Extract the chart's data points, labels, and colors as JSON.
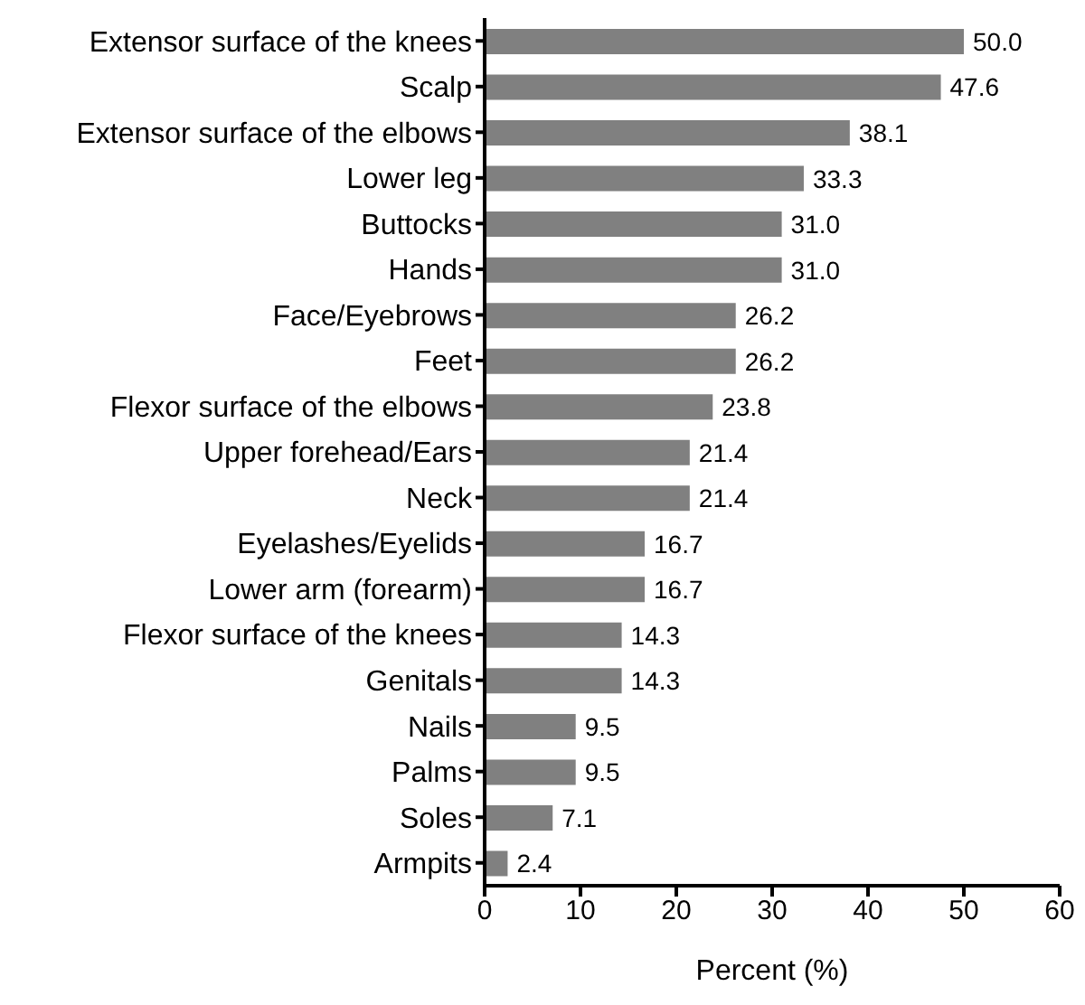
{
  "chart_data": {
    "type": "bar",
    "orientation": "horizontal",
    "xlabel": "Percent (%)",
    "categories": [
      "Extensor surface of the knees",
      "Scalp",
      "Extensor surface of the elbows",
      "Lower leg",
      "Buttocks",
      "Hands",
      "Face/Eyebrows",
      "Feet",
      "Flexor surface of the elbows",
      "Upper forehead/Ears",
      "Neck",
      "Eyelashes/Eyelids",
      "Lower arm (forearm)",
      "Flexor surface of the knees",
      "Genitals",
      "Nails",
      "Palms",
      "Soles",
      "Armpits"
    ],
    "values": [
      50.0,
      47.6,
      38.1,
      33.3,
      31.0,
      31.0,
      26.2,
      26.2,
      23.8,
      21.4,
      21.4,
      16.7,
      16.7,
      14.3,
      14.3,
      9.5,
      9.5,
      7.1,
      2.4
    ],
    "value_labels": [
      "50.0",
      "47.6",
      "38.1",
      "33.3",
      "31.0",
      "31.0",
      "26.2",
      "26.2",
      "23.8",
      "21.4",
      "21.4",
      "16.7",
      "16.7",
      "14.3",
      "14.3",
      "9.5",
      "9.5",
      "7.1",
      "2.4"
    ],
    "color": "#808080",
    "xlim": [
      0,
      60
    ],
    "xticks": [
      0,
      10,
      20,
      30,
      40,
      50,
      60
    ],
    "grid": false,
    "legend": false
  }
}
